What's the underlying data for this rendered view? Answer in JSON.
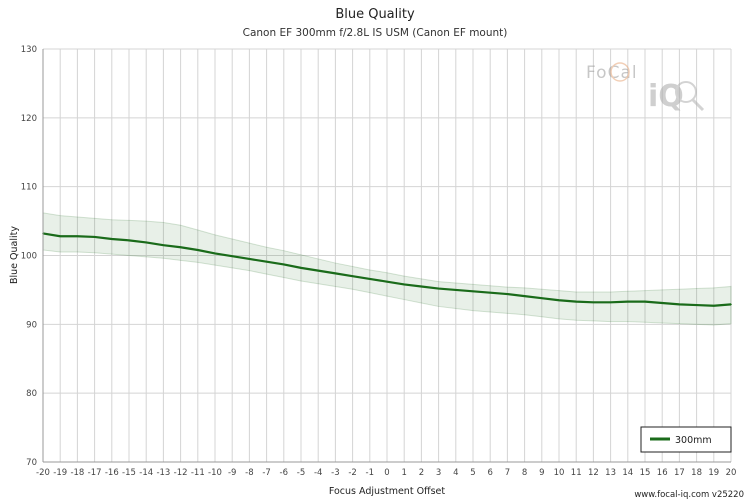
{
  "chart_data": {
    "type": "line",
    "title": "Blue Quality",
    "subtitle": "Canon EF 300mm f/2.8L IS USM (Canon EF mount)",
    "xlabel": "Focus Adjustment Offset",
    "ylabel": "Blue Quality",
    "xlim": [
      -20,
      20
    ],
    "ylim": [
      70,
      130
    ],
    "x_ticks": [
      -20,
      -19,
      -18,
      -17,
      -16,
      -15,
      -14,
      -13,
      -12,
      -11,
      -10,
      -9,
      -8,
      -7,
      -6,
      -5,
      -4,
      -3,
      -2,
      -1,
      0,
      1,
      2,
      3,
      4,
      5,
      6,
      7,
      8,
      9,
      10,
      11,
      12,
      13,
      14,
      15,
      16,
      17,
      18,
      19,
      20
    ],
    "y_ticks": [
      70,
      80,
      90,
      100,
      110,
      120,
      130
    ],
    "grid": true,
    "legend_position": "bottom-right",
    "x": [
      -20,
      -19,
      -18,
      -17,
      -16,
      -15,
      -14,
      -13,
      -12,
      -11,
      -10,
      -9,
      -8,
      -7,
      -6,
      -5,
      -4,
      -3,
      -2,
      -1,
      0,
      1,
      2,
      3,
      4,
      5,
      6,
      7,
      8,
      9,
      10,
      11,
      12,
      13,
      14,
      15,
      16,
      17,
      18,
      19,
      20
    ],
    "series": [
      {
        "name": "300mm",
        "color": "#1a6b1a",
        "values": [
          103.2,
          102.8,
          102.8,
          102.7,
          102.4,
          102.2,
          101.9,
          101.5,
          101.2,
          100.8,
          100.3,
          99.9,
          99.5,
          99.1,
          98.7,
          98.2,
          97.8,
          97.4,
          97.0,
          96.6,
          96.2,
          95.8,
          95.5,
          95.2,
          95.0,
          94.8,
          94.6,
          94.4,
          94.1,
          93.8,
          93.5,
          93.3,
          93.2,
          93.2,
          93.3,
          93.3,
          93.1,
          92.9,
          92.8,
          92.7,
          92.9
        ],
        "band_upper": [
          106.2,
          105.8,
          105.6,
          105.4,
          105.2,
          105.1,
          105.0,
          104.8,
          104.4,
          103.7,
          103.0,
          102.4,
          101.8,
          101.2,
          100.7,
          100.1,
          99.5,
          98.9,
          98.4,
          97.9,
          97.5,
          97.0,
          96.6,
          96.2,
          96.0,
          95.8,
          95.6,
          95.4,
          95.3,
          95.1,
          94.9,
          94.7,
          94.7,
          94.7,
          94.8,
          94.9,
          95.0,
          95.1,
          95.2,
          95.3,
          95.5
        ],
        "band_lower": [
          100.8,
          100.5,
          100.5,
          100.4,
          100.2,
          100.0,
          99.8,
          99.6,
          99.3,
          99.0,
          98.6,
          98.2,
          97.8,
          97.3,
          96.8,
          96.3,
          95.9,
          95.5,
          95.1,
          94.6,
          94.1,
          93.6,
          93.1,
          92.6,
          92.3,
          92.0,
          91.8,
          91.6,
          91.4,
          91.1,
          90.8,
          90.6,
          90.5,
          90.4,
          90.4,
          90.3,
          90.2,
          90.1,
          90.0,
          89.9,
          90.1
        ]
      }
    ]
  },
  "logo": {
    "text_top": "FoCal",
    "text_bottom": "iQ"
  },
  "credit": "www.focal-iq.com  v25220"
}
